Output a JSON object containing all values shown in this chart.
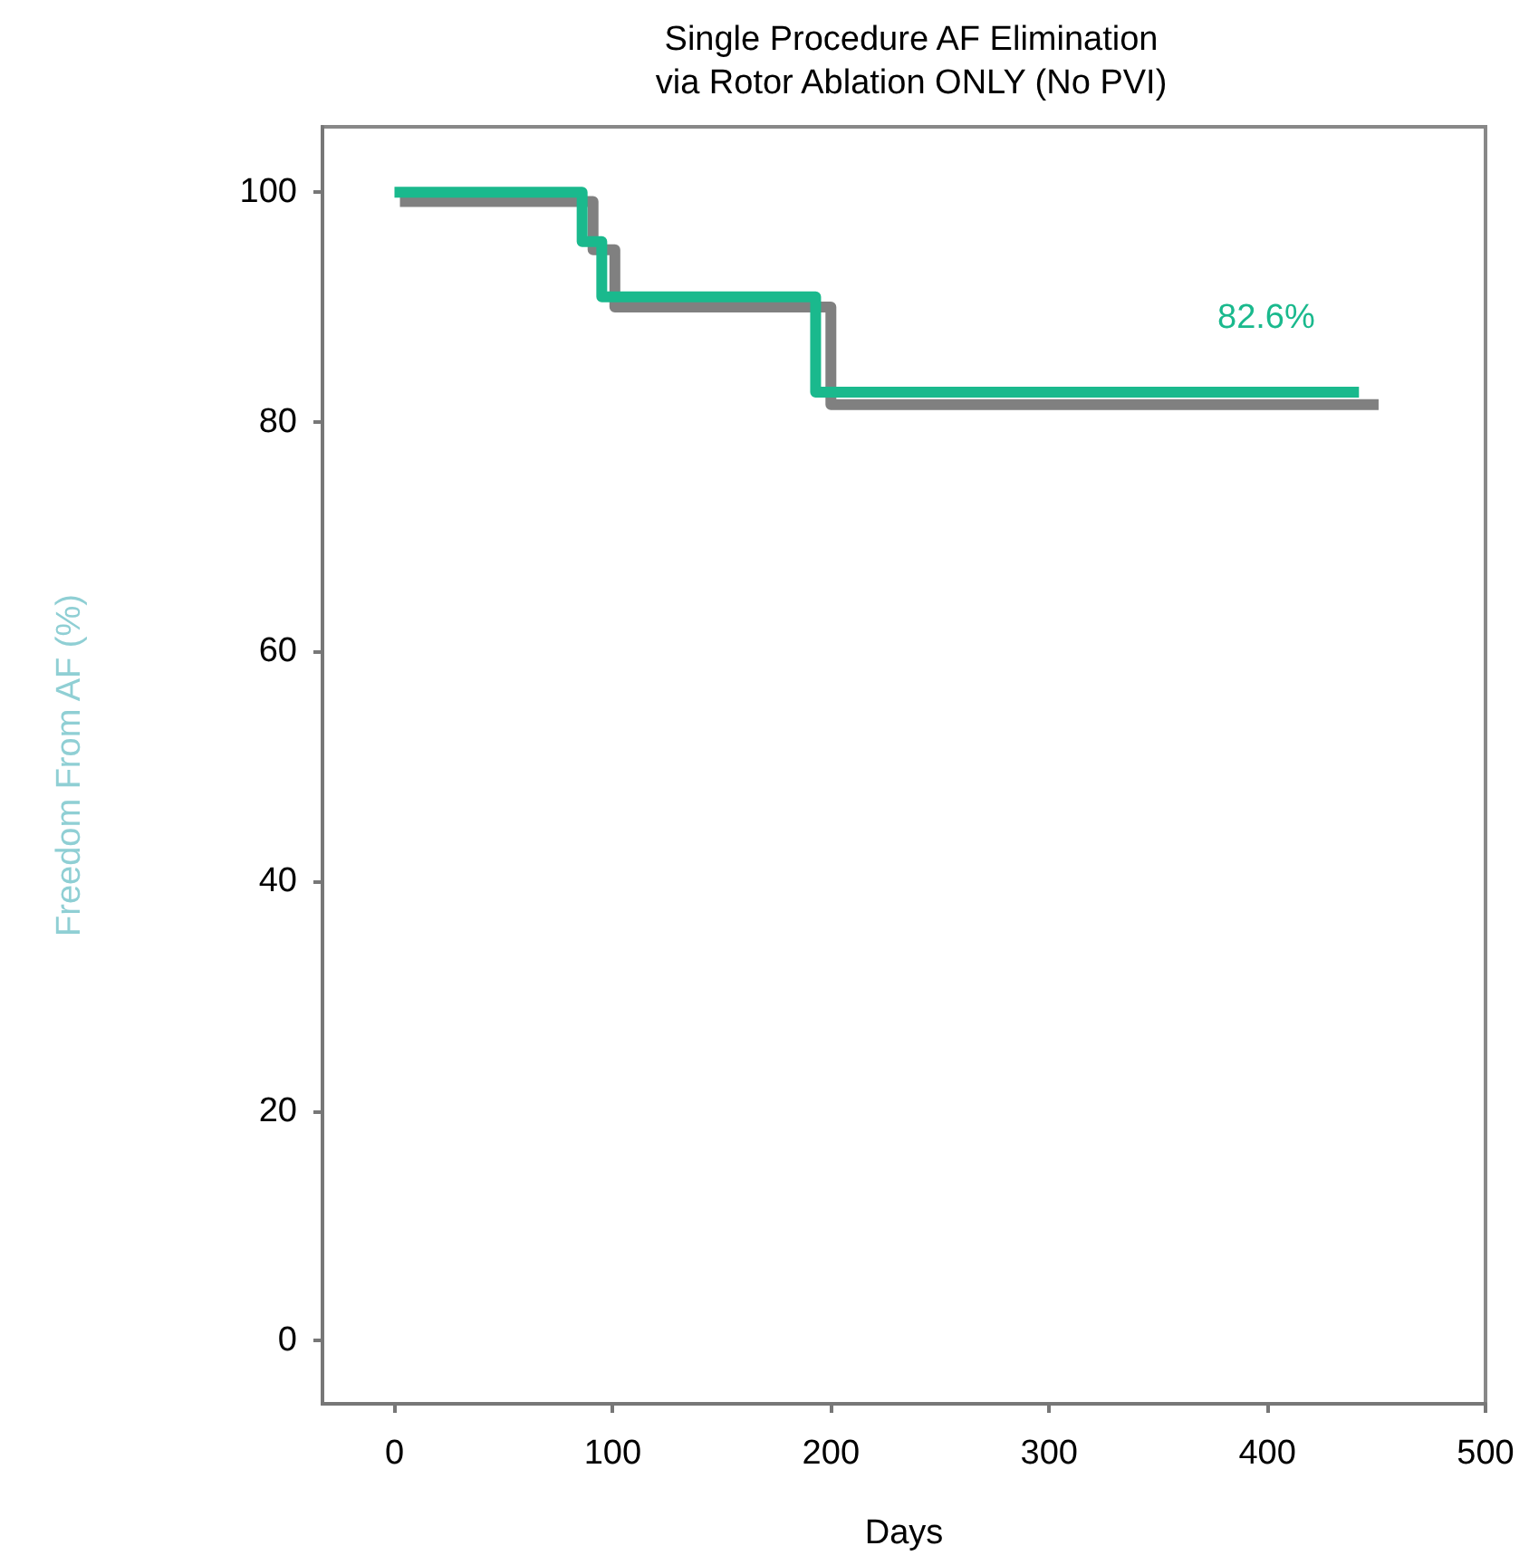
{
  "chart_data": {
    "type": "step",
    "title": "Single Procedure AF Elimination\nvia Rotor Ablation ONLY (No PVI)",
    "xlabel": "Days",
    "ylabel": "Freedom From AF (%)",
    "series": [
      {
        "color": "#808080",
        "x": [
          2.5,
          91,
          101,
          200,
          451
        ],
        "values": [
          99.2,
          95,
          90,
          81.5,
          81.5
        ]
      },
      {
        "color": "#1ab98d",
        "x": [
          0,
          86,
          95,
          193,
          442
        ],
        "values": [
          100,
          95.7,
          90.9,
          82.6,
          82.6
        ]
      }
    ],
    "annotations": [
      "82.6%"
    ],
    "xlim": [
      -33,
      500
    ],
    "ylim": [
      -5.5,
      105.7
    ],
    "xticks": [
      0,
      100,
      200,
      300,
      400,
      500
    ],
    "yticks": [
      0,
      20,
      40,
      60,
      80,
      100
    ],
    "grid": false,
    "marker": "none",
    "line_style": "solid"
  }
}
